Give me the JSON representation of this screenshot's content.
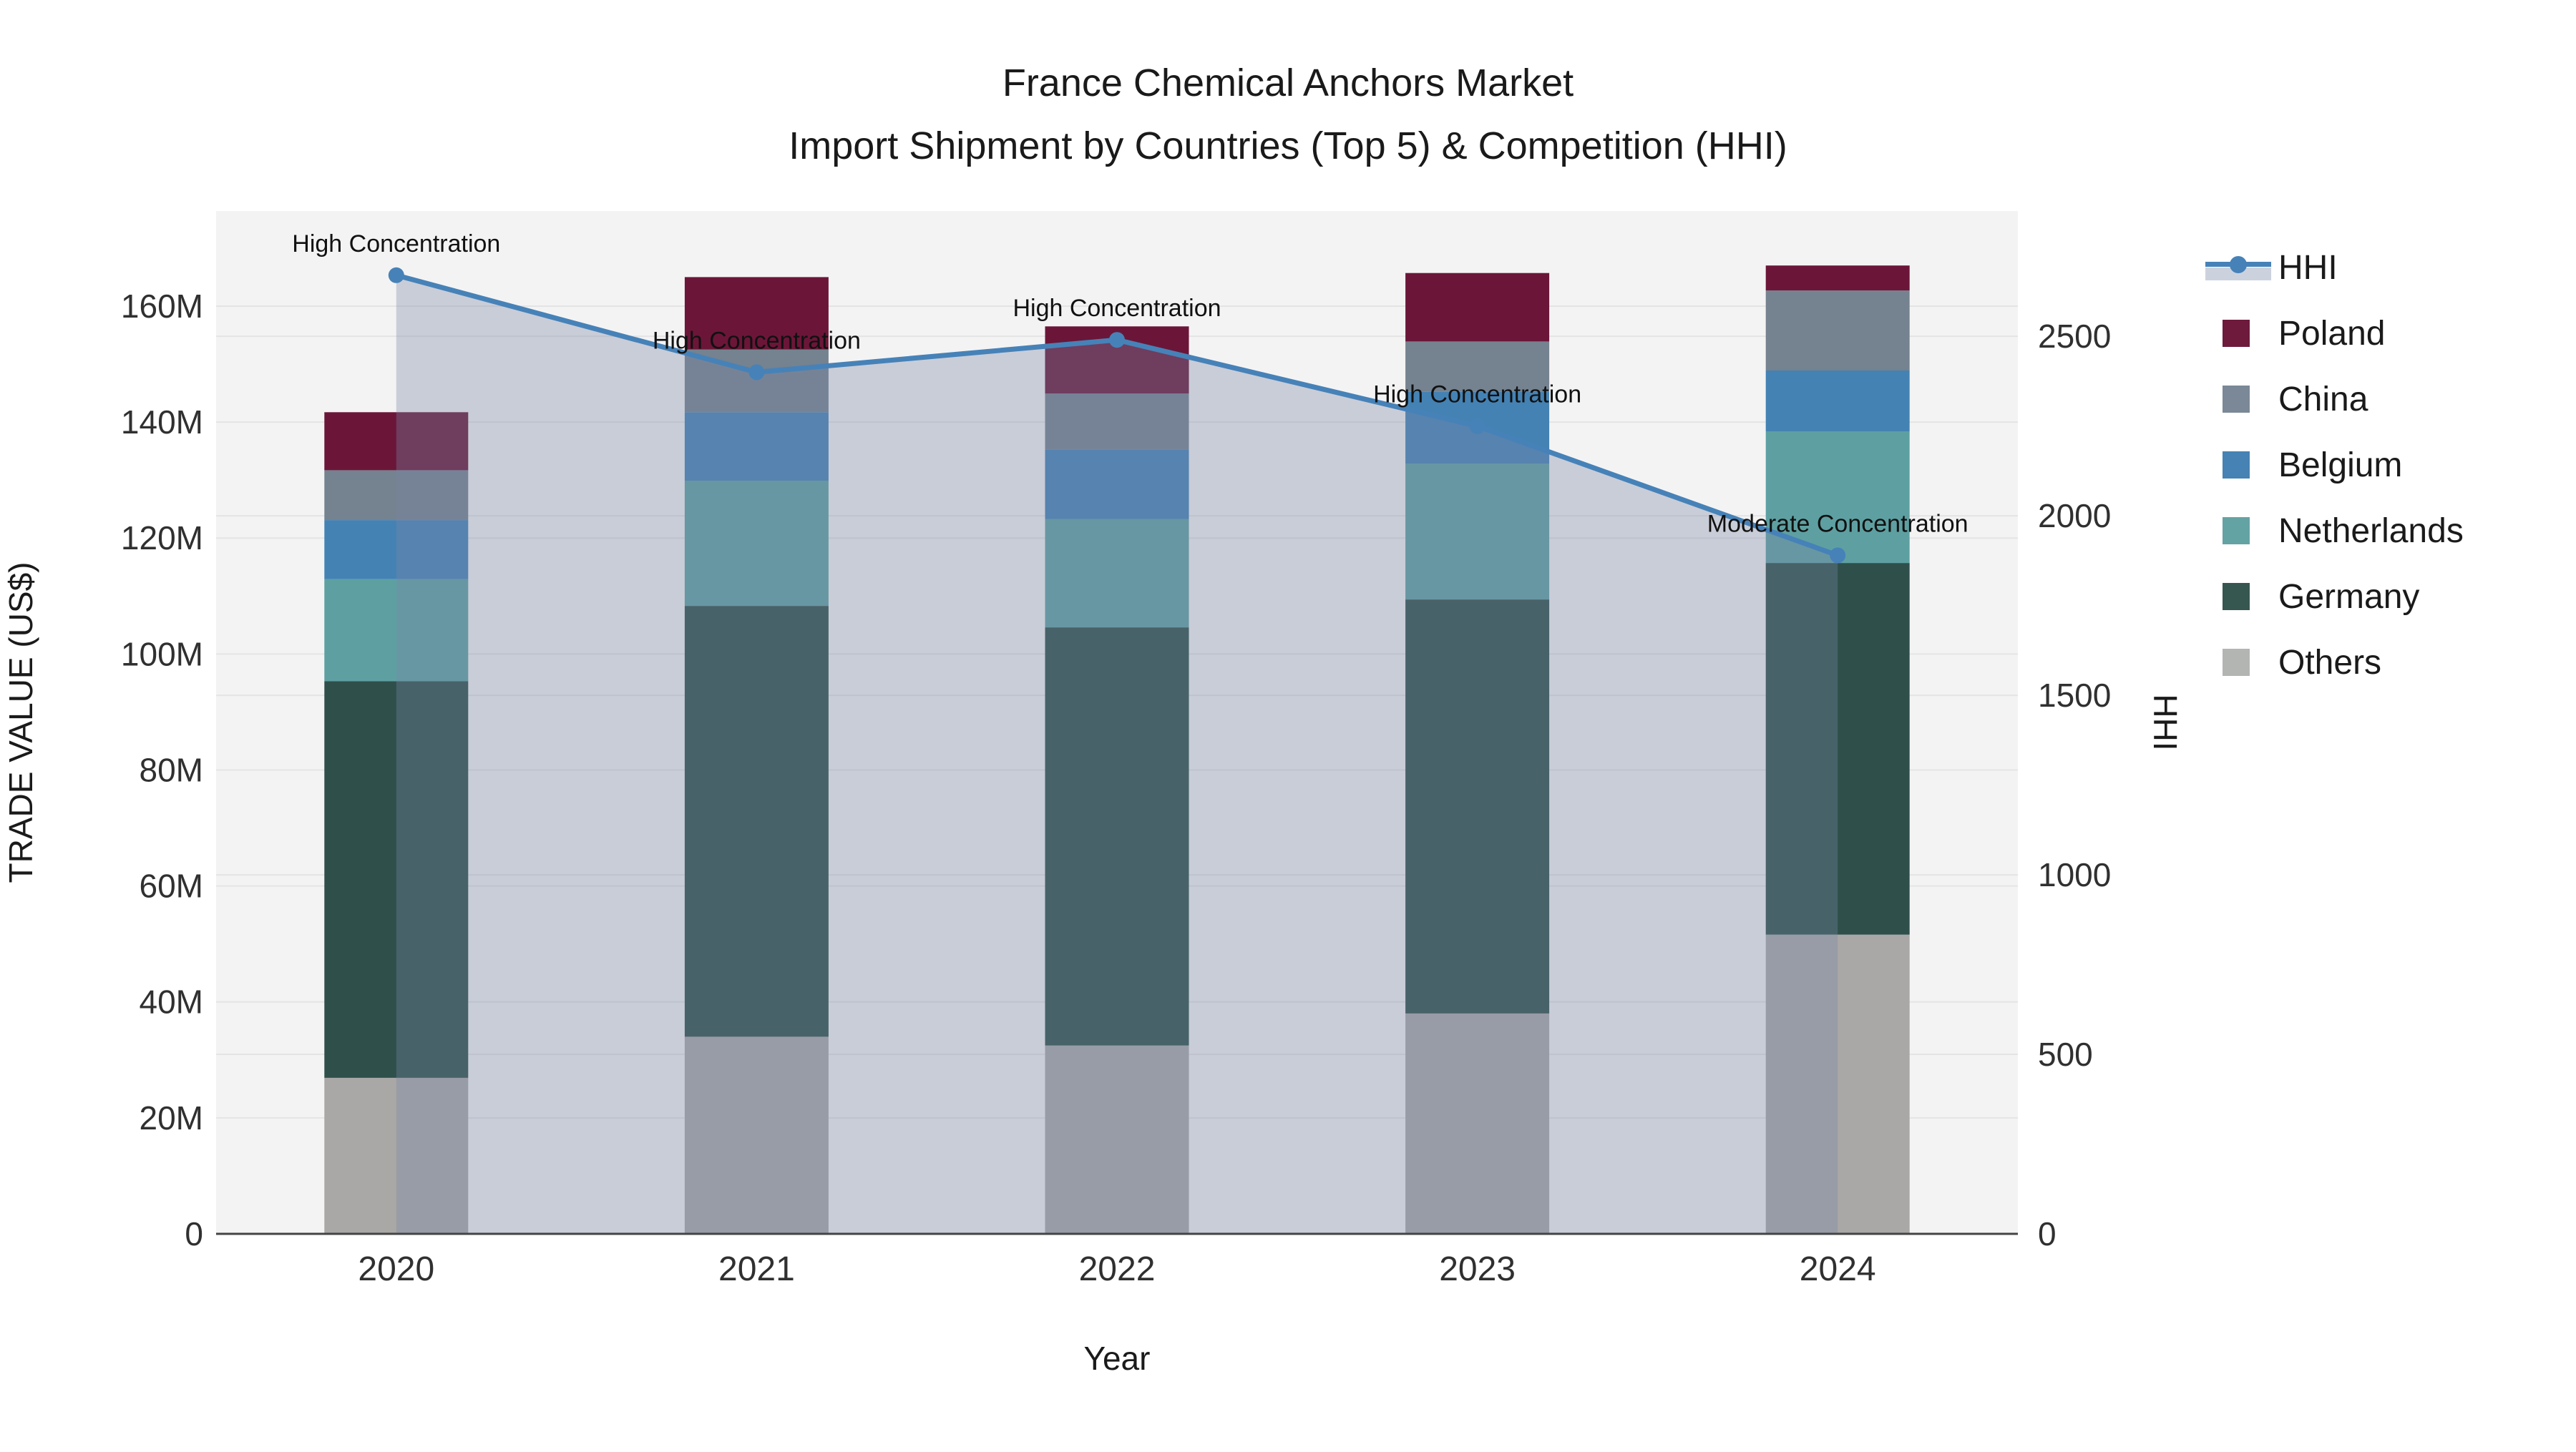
{
  "title": {
    "line1": "France Chemical Anchors Market",
    "line2": "Import Shipment by Countries (Top 5) & Competition (HHI)"
  },
  "chart_data": {
    "type": "bar",
    "subtype": "stacked-bars-with-line",
    "categories": [
      "2020",
      "2021",
      "2022",
      "2023",
      "2024"
    ],
    "series": [
      {
        "name": "Others",
        "color": "#a9a8a6",
        "values": [
          26.9,
          34.0,
          32.5,
          38.0,
          51.6
        ]
      },
      {
        "name": "Germany",
        "color": "#2f4f4b",
        "values": [
          68.4,
          74.3,
          72.1,
          71.4,
          64.1
        ]
      },
      {
        "name": "Netherlands",
        "color": "#5ea0a2",
        "values": [
          17.6,
          21.6,
          18.7,
          23.4,
          22.7
        ]
      },
      {
        "name": "Belgium",
        "color": "#4482b4",
        "values": [
          10.2,
          11.8,
          12.0,
          12.4,
          10.5
        ]
      },
      {
        "name": "China",
        "color": "#75828f",
        "values": [
          8.6,
          10.8,
          9.6,
          8.7,
          13.8
        ]
      },
      {
        "name": "Poland",
        "color": "#6b1638",
        "values": [
          10.0,
          12.5,
          11.6,
          11.8,
          4.3
        ]
      }
    ],
    "line_series": {
      "name": "HHI",
      "color": "#4682b8",
      "fill_color": "rgba(121,135,167,0.35)",
      "values": [
        2670,
        2400,
        2490,
        2250,
        1890
      ]
    },
    "annotations": [
      {
        "year": "2020",
        "text": "High Concentration"
      },
      {
        "year": "2021",
        "text": "High Concentration"
      },
      {
        "year": "2022",
        "text": "High Concentration"
      },
      {
        "year": "2023",
        "text": "High Concentration"
      },
      {
        "year": "2024",
        "text": "Moderate Concentration"
      }
    ],
    "xlabel": "Year",
    "ylabel": "TRADE VALUE (US$)",
    "y2label": "HHI",
    "ylim": [
      0,
      176.4
    ],
    "y2lim": [
      0,
      2849
    ],
    "yticks": [
      {
        "v": 0,
        "label": "0"
      },
      {
        "v": 20,
        "label": "20M"
      },
      {
        "v": 40,
        "label": "40M"
      },
      {
        "v": 60,
        "label": "60M"
      },
      {
        "v": 80,
        "label": "80M"
      },
      {
        "v": 100,
        "label": "100M"
      },
      {
        "v": 120,
        "label": "120M"
      },
      {
        "v": 140,
        "label": "140M"
      },
      {
        "v": 160,
        "label": "160M"
      }
    ],
    "y2ticks": [
      {
        "v": 0,
        "label": "0"
      },
      {
        "v": 500,
        "label": "500"
      },
      {
        "v": 1000,
        "label": "1000"
      },
      {
        "v": 1500,
        "label": "1500"
      },
      {
        "v": 2000,
        "label": "2000"
      },
      {
        "v": 2500,
        "label": "2500"
      }
    ],
    "grid": true,
    "plot_bg": "#f4f3f3",
    "grid_color": "#e4e4e4",
    "axis_line_color": "#444444",
    "tick_color": "#303030",
    "legend_position": "right"
  },
  "legend": {
    "items": [
      {
        "label": "HHI",
        "type": "line",
        "color": "#4682b8"
      },
      {
        "label": "Poland",
        "type": "swatch",
        "color": "#6d1a3c"
      },
      {
        "label": "China",
        "type": "swatch",
        "color": "#7a8897"
      },
      {
        "label": "Belgium",
        "type": "swatch",
        "color": "#4682b4"
      },
      {
        "label": "Netherlands",
        "type": "swatch",
        "color": "#64a3a4"
      },
      {
        "label": "Germany",
        "type": "swatch",
        "color": "#365650"
      },
      {
        "label": "Others",
        "type": "swatch",
        "color": "#b3b5b3"
      }
    ]
  }
}
